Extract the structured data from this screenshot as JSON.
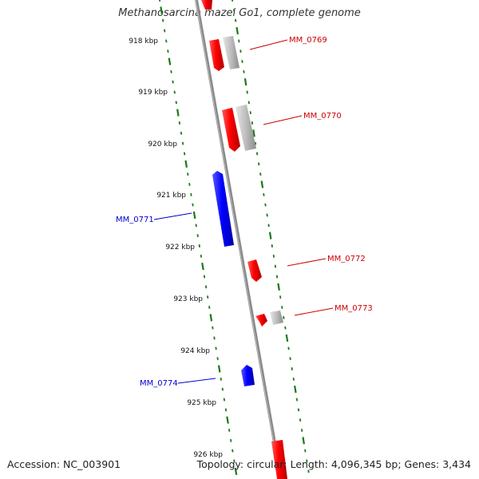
{
  "title": "Methanosarcina mazei Go1, complete genome",
  "footer": {
    "accession": "Accession: NC_003901",
    "summary": "Topology: circular; Length: 4,096,345 bp; Genes: 3,434"
  },
  "colors": {
    "forward_gene": "#ff0000",
    "reverse_gene": "#0000ff",
    "pseudo_gene": "#bbbbbb",
    "backbone": "#888888",
    "tick": "#1a7a1a",
    "label_forward": "#cc0000",
    "label_reverse": "#0000cc"
  },
  "ruler": {
    "ticks": [
      "918 kbp",
      "919 kbp",
      "920 kbp",
      "921 kbp",
      "922 kbp",
      "923 kbp",
      "924 kbp",
      "925 kbp",
      "926 kbp"
    ]
  },
  "gene_labels": [
    {
      "text": "MM_0769",
      "strand": "forward"
    },
    {
      "text": "MM_0770",
      "strand": "forward"
    },
    {
      "text": "MM_0771",
      "strand": "reverse"
    },
    {
      "text": "MM_0772",
      "strand": "forward"
    },
    {
      "text": "MM_0773",
      "strand": "forward"
    },
    {
      "text": "MM_0774",
      "strand": "reverse"
    }
  ]
}
